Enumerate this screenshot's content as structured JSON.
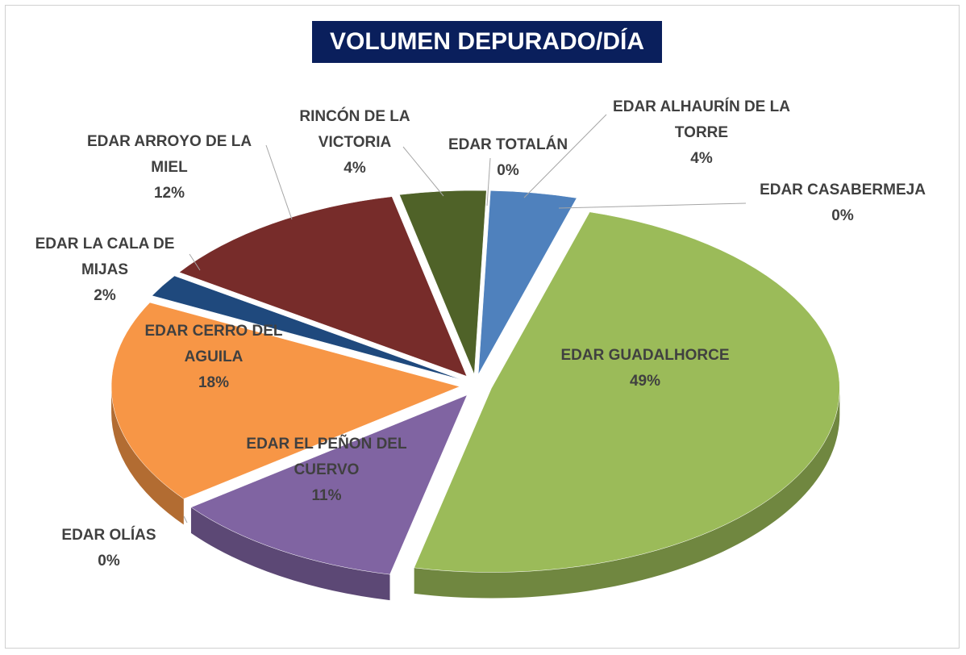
{
  "chart_data": {
    "type": "pie3d",
    "title": "VOLUMEN DEPURADO/DÍA",
    "categories": [
      "EDAR ALHAURÍN DE LA TORRE",
      "EDAR CASABERMEJA",
      "EDAR GUADALHORCE",
      "EDAR EL PEÑON DEL CUERVO",
      "EDAR OLÍAS",
      "EDAR CERRO DEL AGUILA",
      "EDAR LA CALA DE MIJAS",
      "EDAR ARROYO DE LA MIEL",
      "RINCÓN DE LA VICTORIA",
      "EDAR TOTALÁN"
    ],
    "values": [
      4,
      0,
      49,
      11,
      0,
      18,
      2,
      12,
      4,
      0
    ],
    "value_labels": [
      "4%",
      "0%",
      "49%",
      "11%",
      "0%",
      "18%",
      "2%",
      "12%",
      "4%",
      "0%"
    ],
    "colors": [
      "#4f81bd",
      "#c0504d",
      "#9bbb59",
      "#8064a2",
      "#4bacc6",
      "#f79646",
      "#1f497d",
      "#772c2a",
      "#4f6228",
      "#dce6f2"
    ]
  }
}
